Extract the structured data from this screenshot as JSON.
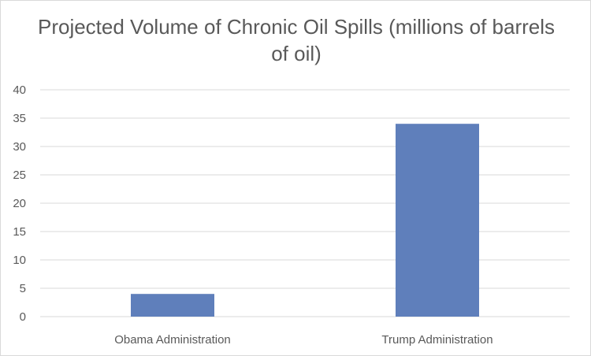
{
  "chart_data": {
    "type": "bar",
    "title": "Projected Volume of Chronic Oil Spills (millions of barrels of oil)",
    "xlabel": "",
    "ylabel": "",
    "categories": [
      "Obama Administration",
      "Trump Administration"
    ],
    "values": [
      4,
      34
    ],
    "ylim": [
      0,
      40
    ],
    "yticks": [
      0,
      5,
      10,
      15,
      20,
      25,
      30,
      35,
      40
    ],
    "grid": true,
    "legend": "none",
    "bar_color": "#5f7fbb",
    "grid_color": "#d9d9d9",
    "text_color": "#595959"
  }
}
